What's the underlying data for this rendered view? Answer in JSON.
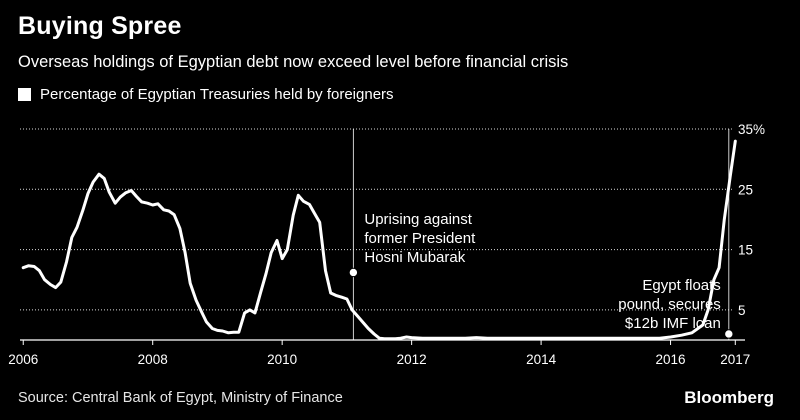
{
  "header": {
    "title": "Buying Spree",
    "subtitle": "Overseas holdings of Egyptian debt now exceed level before financial crisis"
  },
  "footer": {
    "source": "Source: Central Bank of Egypt, Ministry of Finance",
    "brand": "Bloomberg"
  },
  "colors": {
    "background": "#000000",
    "line": "#ffffff",
    "grid": "#ffffff"
  },
  "chart_data": {
    "type": "line",
    "title": "Buying Spree",
    "subtitle": "Overseas holdings of Egyptian debt now exceed level before financial crisis",
    "xlabel": "",
    "ylabel": "",
    "xlim": [
      2005.95,
      2017.15
    ],
    "ylim": [
      0,
      35
    ],
    "x_ticks": [
      2006,
      2008,
      2010,
      2012,
      2014,
      2016,
      2017
    ],
    "x_tick_labels": [
      "2006",
      "2008",
      "2010",
      "2012",
      "2014",
      "2016",
      "2017"
    ],
    "y_ticks": [
      5,
      15,
      25,
      35
    ],
    "y_tick_labels": [
      "5",
      "15",
      "25",
      "35%"
    ],
    "grid": "horizontal-dotted",
    "legend_position": "top-left",
    "series": [
      {
        "name": "Percentage of Egyptian Treasuries held by foreigners",
        "x": [
          2006.0,
          2006.08,
          2006.17,
          2006.25,
          2006.33,
          2006.42,
          2006.5,
          2006.58,
          2006.67,
          2006.75,
          2006.83,
          2006.92,
          2007.0,
          2007.08,
          2007.17,
          2007.25,
          2007.33,
          2007.42,
          2007.5,
          2007.58,
          2007.67,
          2007.75,
          2007.83,
          2007.92,
          2008.0,
          2008.08,
          2008.17,
          2008.25,
          2008.33,
          2008.42,
          2008.5,
          2008.58,
          2008.67,
          2008.75,
          2008.83,
          2008.92,
          2009.0,
          2009.08,
          2009.17,
          2009.25,
          2009.33,
          2009.42,
          2009.5,
          2009.58,
          2009.67,
          2009.75,
          2009.83,
          2009.92,
          2010.0,
          2010.08,
          2010.17,
          2010.25,
          2010.33,
          2010.42,
          2010.5,
          2010.58,
          2010.67,
          2010.75,
          2010.83,
          2010.92,
          2011.0,
          2011.08,
          2011.17,
          2011.25,
          2011.33,
          2011.42,
          2011.5,
          2011.58,
          2011.67,
          2011.75,
          2011.83,
          2011.92,
          2012.0,
          2012.17,
          2012.33,
          2012.5,
          2012.67,
          2012.83,
          2013.0,
          2013.17,
          2013.33,
          2013.5,
          2013.67,
          2013.83,
          2014.0,
          2014.17,
          2014.33,
          2014.5,
          2014.67,
          2014.83,
          2015.0,
          2015.17,
          2015.33,
          2015.5,
          2015.67,
          2015.83,
          2016.0,
          2016.17,
          2016.33,
          2016.5,
          2016.58,
          2016.67,
          2016.75,
          2016.83,
          2016.92,
          2017.0
        ],
        "values": [
          12.0,
          12.3,
          12.2,
          11.5,
          10.0,
          9.2,
          8.7,
          9.6,
          13.0,
          17.0,
          18.7,
          21.5,
          24.3,
          26.2,
          27.5,
          26.8,
          24.5,
          22.7,
          23.7,
          24.4,
          24.8,
          23.8,
          22.9,
          22.7,
          22.4,
          22.6,
          21.6,
          21.4,
          20.8,
          18.5,
          14.5,
          9.4,
          6.6,
          4.8,
          3.0,
          1.9,
          1.6,
          1.5,
          1.2,
          1.3,
          1.3,
          4.5,
          5.0,
          4.5,
          8.0,
          11.0,
          14.5,
          16.5,
          13.5,
          15.0,
          20.7,
          24.0,
          23.0,
          22.5,
          21.0,
          19.5,
          11.5,
          7.8,
          7.4,
          7.1,
          6.8,
          5.0,
          3.9,
          2.9,
          1.9,
          1.0,
          0.3,
          0.2,
          0.2,
          0.2,
          0.3,
          0.5,
          0.4,
          0.3,
          0.3,
          0.3,
          0.3,
          0.3,
          0.4,
          0.3,
          0.3,
          0.3,
          0.3,
          0.3,
          0.3,
          0.3,
          0.3,
          0.3,
          0.3,
          0.3,
          0.3,
          0.3,
          0.3,
          0.3,
          0.3,
          0.3,
          0.5,
          0.8,
          1.2,
          2.5,
          5.0,
          10.0,
          12.0,
          20.0,
          27.0,
          33.0
        ]
      }
    ],
    "annotations": [
      {
        "x": 2011.1,
        "y": 11.2,
        "lines": [
          "Uprising against",
          "former President",
          "Hosni Mubarak"
        ]
      },
      {
        "x": 2016.9,
        "y": 1.0,
        "lines": [
          "Egypt floats",
          "pound, secures",
          "$12b IMF loan"
        ]
      }
    ]
  }
}
